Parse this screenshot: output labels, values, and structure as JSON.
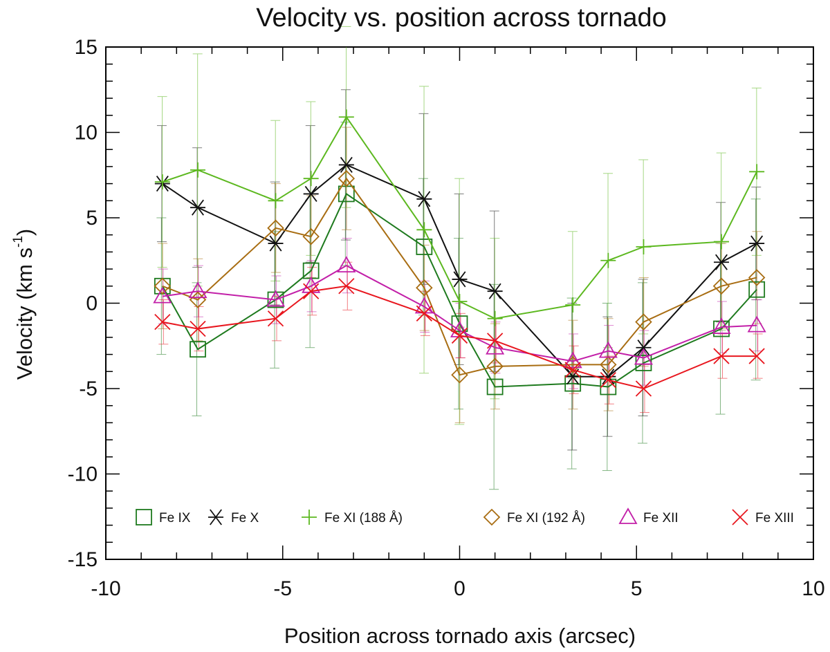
{
  "chart_data": {
    "type": "line",
    "title": "Velocity vs. position across tornado",
    "xlabel": "Position across tornado axis (arcsec)",
    "ylabel_main": "Velocity (km s",
    "ylabel_sup": "-1",
    "ylabel_close": ")",
    "xlim": [
      -10,
      10
    ],
    "ylim": [
      -15,
      15
    ],
    "xticks": [
      -10,
      -5,
      0,
      5,
      10
    ],
    "xtick_labels": [
      "-10",
      "-5",
      "0",
      "5",
      "10"
    ],
    "yticks": [
      -15,
      -10,
      -5,
      0,
      5,
      10,
      15
    ],
    "ytick_labels": [
      "-15",
      "-10",
      "-5",
      "0",
      "5",
      "10",
      "15"
    ],
    "x": [
      -8.4,
      -7.4,
      -5.2,
      -4.2,
      -3.2,
      -1.0,
      0.0,
      1.0,
      3.2,
      4.2,
      5.2,
      7.4,
      8.4
    ],
    "series": [
      {
        "name": "Fe IX",
        "color": "#1e7a1e",
        "marker": "square",
        "values": [
          1.0,
          -2.7,
          0.2,
          1.9,
          6.4,
          3.3,
          -1.2,
          -4.9,
          -4.7,
          -4.9,
          -3.5,
          -1.5,
          0.8
        ],
        "errors": [
          4.0,
          3.9,
          4.0,
          4.5,
          4.2,
          4.0,
          5.0,
          6.0,
          5.0,
          4.9,
          4.7,
          5.0,
          5.3
        ]
      },
      {
        "name": "Fe X",
        "color": "#111111",
        "marker": "asterisk",
        "values": [
          7.0,
          5.6,
          3.5,
          6.4,
          8.1,
          6.1,
          1.4,
          0.7,
          -4.3,
          -4.3,
          -2.6,
          2.4,
          3.5
        ],
        "errors": [
          3.4,
          3.5,
          3.6,
          4.0,
          4.4,
          5.0,
          5.0,
          4.7,
          4.3,
          3.5,
          4.0,
          3.5,
          3.3
        ]
      },
      {
        "name": "Fe XI (188 Å)",
        "color": "#5cb81f",
        "marker": "plus",
        "values": [
          7.1,
          7.8,
          6.0,
          7.3,
          10.9,
          4.3,
          0.1,
          -0.9,
          -0.1,
          2.5,
          3.3,
          3.6,
          7.7
        ],
        "errors": [
          5.0,
          6.8,
          4.7,
          4.5,
          5.3,
          8.4,
          7.2,
          4.7,
          4.3,
          5.1,
          5.1,
          5.2,
          4.9
        ]
      },
      {
        "name": "Fe XI (192 Å)",
        "color": "#a86d12",
        "marker": "diamond",
        "values": [
          1.0,
          0.2,
          4.4,
          3.9,
          7.3,
          0.9,
          -4.2,
          -3.7,
          -3.6,
          -3.6,
          -1.1,
          1.0,
          1.5
        ],
        "errors": [
          2.5,
          2.4,
          2.6,
          2.4,
          3.0,
          2.5,
          2.8,
          2.5,
          2.6,
          2.7,
          2.6,
          2.5,
          2.7
        ]
      },
      {
        "name": "Fe XII",
        "color": "#c21fa8",
        "marker": "triangle",
        "values": [
          0.4,
          0.7,
          0.2,
          1.0,
          2.2,
          -0.2,
          -1.6,
          -2.6,
          -3.4,
          -2.8,
          -3.2,
          -1.4,
          -1.3
        ],
        "errors": [
          1.6,
          1.5,
          1.4,
          1.5,
          1.6,
          1.5,
          1.6,
          1.5,
          1.6,
          1.5,
          1.6,
          1.5,
          1.5
        ]
      },
      {
        "name": "Fe XIII",
        "color": "#e8161e",
        "marker": "x",
        "values": [
          -1.1,
          -1.5,
          -0.9,
          0.7,
          1.0,
          -0.6,
          -1.9,
          -2.2,
          -3.9,
          -4.5,
          -5.0,
          -3.1,
          -3.1
        ],
        "errors": [
          1.3,
          1.3,
          1.3,
          1.4,
          1.4,
          1.3,
          1.3,
          1.3,
          1.4,
          1.4,
          1.4,
          1.3,
          1.3
        ]
      }
    ],
    "legend_position": "bottom, inside plot",
    "grid": false
  }
}
